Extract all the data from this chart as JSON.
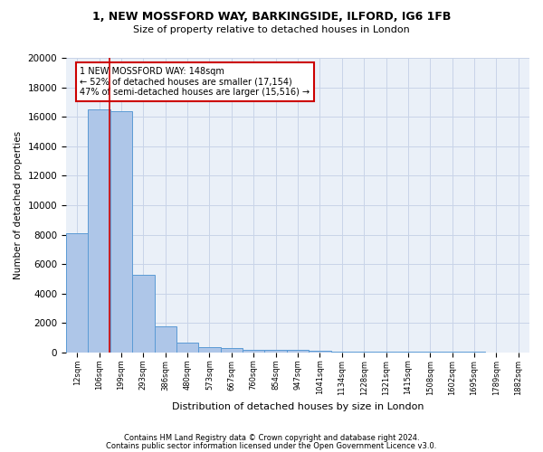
{
  "title1": "1, NEW MOSSFORD WAY, BARKINGSIDE, ILFORD, IG6 1FB",
  "title2": "Size of property relative to detached houses in London",
  "xlabel": "Distribution of detached houses by size in London",
  "ylabel": "Number of detached properties",
  "bar_heights": [
    8100,
    16500,
    16400,
    5300,
    1750,
    650,
    350,
    275,
    200,
    175,
    150,
    100,
    80,
    60,
    50,
    40,
    35,
    30,
    25,
    20
  ],
  "bar_labels": [
    "12sqm",
    "106sqm",
    "199sqm",
    "293sqm",
    "386sqm",
    "480sqm",
    "573sqm",
    "667sqm",
    "760sqm",
    "854sqm",
    "947sqm",
    "1041sqm",
    "1134sqm",
    "1228sqm",
    "1321sqm",
    "1415sqm",
    "1508sqm",
    "1602sqm",
    "1695sqm",
    "1789sqm",
    "1882sqm"
  ],
  "bar_color": "#aec6e8",
  "bar_edge_color": "#5b9bd5",
  "vline_x": 1.48,
  "vline_color": "#cc0000",
  "annotation_text": "1 NEW MOSSFORD WAY: 148sqm\n← 52% of detached houses are smaller (17,154)\n47% of semi-detached houses are larger (15,516) →",
  "annotation_box_color": "#cc0000",
  "grid_color": "#c8d4e8",
  "bg_color": "#eaf0f8",
  "ylim": [
    0,
    20000
  ],
  "footer1": "Contains HM Land Registry data © Crown copyright and database right 2024.",
  "footer2": "Contains public sector information licensed under the Open Government Licence v3.0."
}
